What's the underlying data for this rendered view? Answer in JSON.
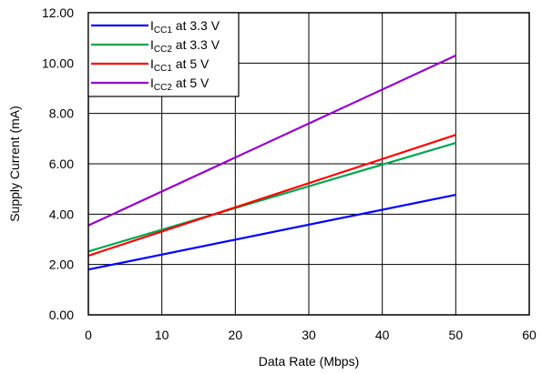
{
  "chart_data": {
    "type": "line",
    "title": "",
    "xlabel": "Data Rate (Mbps)",
    "ylabel": "Supply Current (mA)",
    "xlim": [
      0,
      60
    ],
    "ylim": [
      0,
      12
    ],
    "x_ticks": [
      0,
      10,
      20,
      30,
      40,
      50,
      60
    ],
    "y_ticks": [
      0,
      2,
      4,
      6,
      8,
      10,
      12
    ],
    "x_tick_labels": [
      "0",
      "10",
      "20",
      "30",
      "40",
      "50",
      "60"
    ],
    "y_tick_labels": [
      "0.00",
      "2.00",
      "4.00",
      "6.00",
      "8.00",
      "10.00",
      "12.00"
    ],
    "grid": true,
    "legend_position": "top-left",
    "series": [
      {
        "name": "ICC1 at 3.3 V",
        "label_main": "I",
        "label_sub": "CC1",
        "label_rest": " at 3.3 V",
        "color": "#0000ff",
        "x": [
          0,
          50
        ],
        "y": [
          1.8,
          4.77
        ]
      },
      {
        "name": "ICC2 at 3.3 V",
        "label_main": "I",
        "label_sub": "CC2",
        "label_rest": " at 3.3 V",
        "color": "#00a650",
        "x": [
          0,
          50
        ],
        "y": [
          2.52,
          6.83
        ]
      },
      {
        "name": "ICC1 at 5 V",
        "label_main": "I",
        "label_sub": "CC1",
        "label_rest": " at 5 V",
        "color": "#ff0000",
        "x": [
          0,
          50
        ],
        "y": [
          2.35,
          7.15
        ]
      },
      {
        "name": "ICC2 at 5 V",
        "label_main": "I",
        "label_sub": "CC2",
        "label_rest": " at 5 V",
        "color": "#9900cc",
        "x": [
          0,
          50
        ],
        "y": [
          3.55,
          10.3
        ]
      }
    ]
  }
}
